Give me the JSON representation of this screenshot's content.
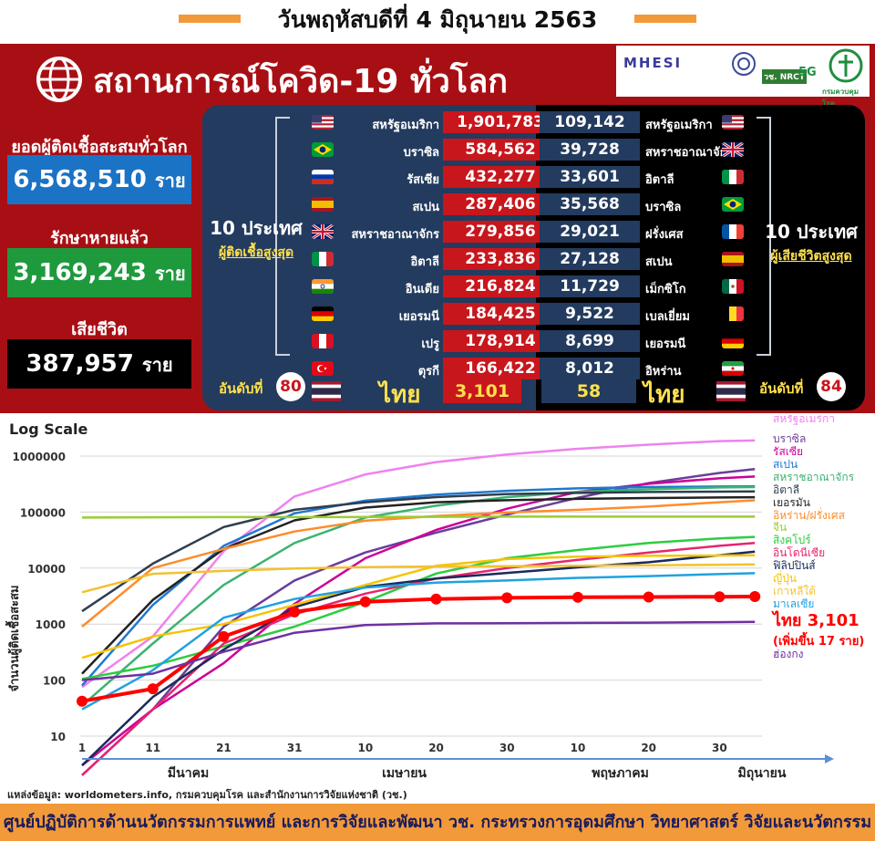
{
  "header": {
    "date_title": "วันพฤหัสบดีที่ 4 มิถุนายน 2563"
  },
  "banner": {
    "title": "สถานการณ์โควิด-19 ทั่วโลก",
    "logos": [
      "MHESI",
      "วช. NRCT",
      "5G",
      "กรมควบคุมโรค"
    ]
  },
  "stats": {
    "total_label": "ยอดผู้ติดเชื้อสะสมทั่วโลก",
    "total_value": "6,568,510",
    "recovered_label": "รักษาหายแล้ว",
    "recovered_value": "3,169,243",
    "deaths_label": "เสียชีวิต",
    "deaths_value": "387,957",
    "unit": "ราย",
    "colors": {
      "total": "#1b73c6",
      "recovered": "#1e9a3d",
      "deaths": "#000000"
    }
  },
  "cases_panel": {
    "title": "10 ประเทศ",
    "subtitle": "ผู้ติดเชื้อสูงสุด",
    "rank_label": "อันดับที่",
    "thailand_rank": "80",
    "thailand_name": "ไทย",
    "thailand_value": "3,101",
    "rows": [
      {
        "country": "สหรัฐอเมริกา",
        "value": "1,901,783",
        "flag": "us-flag-icon"
      },
      {
        "country": "บราซิล",
        "value": "584,562",
        "flag": "brazil-flag-icon"
      },
      {
        "country": "รัสเซีย",
        "value": "432,277",
        "flag": "russia-flag-icon"
      },
      {
        "country": "สเปน",
        "value": "287,406",
        "flag": "spain-flag-icon"
      },
      {
        "country": "สหราชอาณาจักร",
        "value": "279,856",
        "flag": "uk-flag-icon"
      },
      {
        "country": "อิตาลี",
        "value": "233,836",
        "flag": "italy-flag-icon"
      },
      {
        "country": "อินเดีย",
        "value": "216,824",
        "flag": "india-flag-icon"
      },
      {
        "country": "เยอรมนี",
        "value": "184,425",
        "flag": "germany-flag-icon"
      },
      {
        "country": "เปรู",
        "value": "178,914",
        "flag": "peru-flag-icon"
      },
      {
        "country": "ตุรกี",
        "value": "166,422",
        "flag": "turkey-flag-icon"
      }
    ]
  },
  "deaths_panel": {
    "title": "10 ประเทศ",
    "subtitle": "ผู้เสียชีวิตสูงสุด",
    "rank_label": "อันดับที่",
    "thailand_rank": "84",
    "thailand_name": "ไทย",
    "thailand_value": "58",
    "rows": [
      {
        "country": "สหรัฐอเมริกา",
        "value": "109,142",
        "flag": "us-flag-icon"
      },
      {
        "country": "สหราชอาณาจักร",
        "value": "39,728",
        "flag": "uk-flag-icon"
      },
      {
        "country": "อิตาลี",
        "value": "33,601",
        "flag": "italy-flag-icon"
      },
      {
        "country": "บราซิล",
        "value": "35,568",
        "flag": "brazil-flag-icon"
      },
      {
        "country": "ฝรั่งเศส",
        "value": "29,021",
        "flag": "france-flag-icon"
      },
      {
        "country": "สเปน",
        "value": "27,128",
        "flag": "spain-flag-icon"
      },
      {
        "country": "เม็กซิโก",
        "value": "11,729",
        "flag": "mexico-flag-icon"
      },
      {
        "country": "เบลเยี่ยม",
        "value": "9,522",
        "flag": "belgium-flag-icon"
      },
      {
        "country": "เยอรมนี",
        "value": "8,699",
        "flag": "germany-flag-icon"
      },
      {
        "country": "อิหร่าน",
        "value": "8,012",
        "flag": "iran-flag-icon"
      }
    ]
  },
  "chart_data": {
    "type": "line",
    "title": "Log Scale",
    "ylabel": "จำนวนผู้ติดเชื้อสะสม",
    "yscale": "log",
    "ylim": [
      10,
      2000000
    ],
    "yticks": [
      "1000000",
      "100000",
      "10000",
      "1000",
      "100",
      "10"
    ],
    "x_ticks": [
      "1",
      "11",
      "21",
      "31",
      "10",
      "20",
      "30",
      "10",
      "20",
      "30"
    ],
    "x_ticks_day": [
      0,
      10,
      20,
      30,
      40,
      50,
      60,
      70,
      80,
      90
    ],
    "months": [
      "มีนาคม",
      "เมษายน",
      "พฤษภาคม",
      "มิถุนายน"
    ],
    "months_day": [
      15,
      45.5,
      76,
      96
    ],
    "x_note": "x = days since 1 March 2020",
    "series": [
      {
        "name": "สหรัฐอเมริกา",
        "color": "#ee82ee",
        "x": [
          0,
          10,
          20,
          30,
          40,
          50,
          60,
          70,
          80,
          90,
          95
        ],
        "y": [
          75,
          600,
          20000,
          190000,
          470000,
          780000,
          1070000,
          1350000,
          1600000,
          1850000,
          1900000
        ]
      },
      {
        "name": "บราซิล",
        "color": "#6a3d9a",
        "x": [
          0,
          10,
          20,
          30,
          40,
          50,
          60,
          70,
          80,
          90,
          95
        ],
        "y": [
          2,
          30,
          900,
          6000,
          19000,
          43000,
          90000,
          180000,
          330000,
          500000,
          584000
        ]
      },
      {
        "name": "รัสเซีย",
        "color": "#cc0099",
        "x": [
          0,
          10,
          20,
          30,
          40,
          50,
          60,
          70,
          80,
          90,
          95
        ],
        "y": [
          3,
          30,
          200,
          2300,
          15000,
          48000,
          115000,
          230000,
          320000,
          400000,
          432000
        ]
      },
      {
        "name": "สเปน",
        "color": "#1f78d1",
        "x": [
          0,
          10,
          20,
          30,
          40,
          50,
          60,
          70,
          80,
          90,
          95
        ],
        "y": [
          80,
          2200,
          25000,
          95000,
          160000,
          205000,
          240000,
          265000,
          280000,
          286000,
          287400
        ]
      },
      {
        "name": "สหราชอาณาจักร",
        "color": "#3cb371",
        "x": [
          0,
          10,
          20,
          30,
          40,
          50,
          60,
          70,
          80,
          90,
          95
        ],
        "y": [
          35,
          450,
          5000,
          28000,
          80000,
          130000,
          185000,
          230000,
          255000,
          275000,
          279800
        ]
      },
      {
        "name": "อิตาลี",
        "color": "#2f3e50",
        "x": [
          0,
          10,
          20,
          30,
          40,
          50,
          60,
          70,
          80,
          90,
          95
        ],
        "y": [
          1700,
          12000,
          54000,
          110000,
          150000,
          185000,
          210000,
          220000,
          228000,
          232000,
          233800
        ]
      },
      {
        "name": "เยอรมนี",
        "color": "#222222",
        "x": [
          0,
          10,
          20,
          30,
          40,
          50,
          60,
          70,
          80,
          90,
          95
        ],
        "y": [
          130,
          2700,
          22000,
          71000,
          120000,
          150000,
          163000,
          172000,
          178000,
          182000,
          184400
        ]
      },
      {
        "name": "อิหร่าน/ฝรั่งเศส",
        "color": "#ff8c2a",
        "x": [
          0,
          10,
          20,
          30,
          40,
          50,
          60,
          70,
          80,
          90,
          95
        ],
        "y": [
          900,
          10000,
          22000,
          45000,
          70000,
          85000,
          98000,
          110000,
          125000,
          150000,
          162000
        ]
      },
      {
        "name": "จีน",
        "color": "#9acd32",
        "x": [
          0,
          10,
          20,
          30,
          40,
          50,
          60,
          70,
          80,
          90,
          95
        ],
        "y": [
          80000,
          80900,
          81300,
          81500,
          81700,
          82300,
          82800,
          82900,
          82950,
          83000,
          83000
        ]
      },
      {
        "name": "สิงคโปร์",
        "color": "#2ecc40",
        "x": [
          0,
          10,
          20,
          30,
          40,
          50,
          60,
          70,
          80,
          90,
          95
        ],
        "y": [
          105,
          180,
          400,
          900,
          2500,
          8000,
          15000,
          21000,
          28000,
          34000,
          36000
        ]
      },
      {
        "name": "อินโดนีเซีย",
        "color": "#e8246f",
        "x": [
          0,
          10,
          20,
          30,
          40,
          50,
          60,
          70,
          80,
          90,
          95
        ],
        "y": [
          2,
          30,
          450,
          1500,
          3500,
          6500,
          10000,
          14000,
          19000,
          25000,
          28000
        ]
      },
      {
        "name": "ฟิลิปปินส์",
        "color": "#1a2a5a",
        "x": [
          0,
          10,
          20,
          30,
          40,
          50,
          60,
          70,
          80,
          90,
          95
        ],
        "y": [
          3,
          50,
          350,
          2000,
          4600,
          6500,
          8200,
          10300,
          12700,
          17000,
          19700
        ]
      },
      {
        "name": "ญี่ปุ่น",
        "color": "#f5c400",
        "x": [
          0,
          10,
          20,
          30,
          40,
          50,
          60,
          70,
          80,
          90,
          95
        ],
        "y": [
          250,
          600,
          1000,
          2200,
          5000,
          11000,
          14500,
          16000,
          16500,
          16800,
          17000
        ]
      },
      {
        "name": "เกาหลีใต้",
        "color": "#f1c232",
        "x": [
          0,
          10,
          20,
          30,
          40,
          50,
          60,
          70,
          80,
          90,
          95
        ],
        "y": [
          3700,
          7900,
          8900,
          9800,
          10400,
          10700,
          10800,
          11000,
          11200,
          11500,
          11600
        ]
      },
      {
        "name": "มาเลเซีย",
        "color": "#1fa2e0",
        "x": [
          0,
          10,
          20,
          30,
          40,
          50,
          60,
          70,
          80,
          90,
          95
        ],
        "y": [
          30,
          150,
          1300,
          2800,
          4500,
          5500,
          6000,
          6700,
          7200,
          7800,
          8100
        ]
      },
      {
        "name": "ไทย",
        "color": "#ff0000",
        "x": [
          0,
          10,
          20,
          30,
          40,
          50,
          60,
          70,
          80,
          90,
          95
        ],
        "y": [
          42,
          70,
          600,
          1650,
          2500,
          2800,
          2950,
          3010,
          3050,
          3080,
          3101
        ]
      },
      {
        "name": "ฮ่องกง",
        "color": "#7030a0",
        "x": [
          0,
          10,
          20,
          30,
          40,
          50,
          60,
          70,
          80,
          90,
          95
        ],
        "y": [
          100,
          130,
          320,
          700,
          960,
          1030,
          1040,
          1050,
          1060,
          1080,
          1100
        ]
      }
    ],
    "legend": [
      "สหรัฐอเมริกา",
      "บราซิล",
      "รัสเซีย",
      "สเปน",
      "สหราชอาณาจักร",
      "อิตาลี",
      "เยอรมัน",
      "อิหร่าน/ฝรั่งเศส",
      "จีน",
      "สิงคโปร์",
      "อินโดนีเซีย",
      "ฟิลิปปินส์",
      "ญี่ปุ่น",
      "เกาหลีใต้",
      "มาเลเซีย",
      "ไทย 3,101",
      "(เพิ่มขึ้น 17 ราย)",
      "ฮ่องกง"
    ],
    "legend_colors": [
      "#ee82ee",
      "#6a3d9a",
      "#cc0099",
      "#1f78d1",
      "#3cb371",
      "#2f3e50",
      "#222222",
      "#ff8c2a",
      "#9acd32",
      "#2ecc40",
      "#e8246f",
      "#1a2a5a",
      "#f5c400",
      "#f1c232",
      "#1fa2e0",
      "#ff0000",
      "#ff0000",
      "#7030a0"
    ],
    "legend_placement": "right",
    "grid": "horizontal"
  },
  "source_note": "แหล่งข้อมูล: worldometers.info, กรมควบคุมโรค และสำนักงานการวิจัยแห่งชาติ (วช.)",
  "footer": "ศูนย์ปฏิบัติการด้านนวัตกรรมการแพทย์ และการวิจัยและพัฒนา วช. กระทรวงการอุดมศึกษา วิทยาศาสตร์ วิจัยและนวัตกรรม"
}
